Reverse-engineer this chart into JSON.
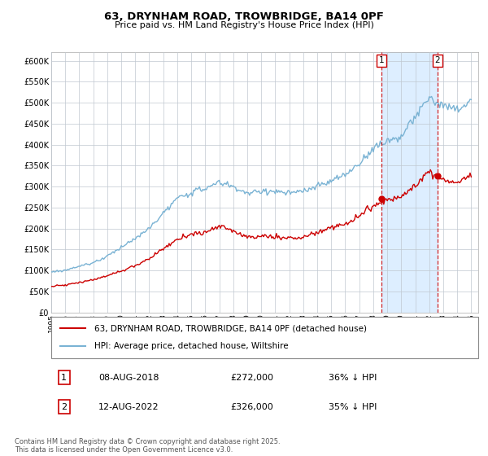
{
  "title": "63, DRYNHAM ROAD, TROWBRIDGE, BA14 0PF",
  "subtitle": "Price paid vs. HM Land Registry's House Price Index (HPI)",
  "ylabel_ticks": [
    "£0",
    "£50K",
    "£100K",
    "£150K",
    "£200K",
    "£250K",
    "£300K",
    "£350K",
    "£400K",
    "£450K",
    "£500K",
    "£550K",
    "£600K"
  ],
  "ytick_values": [
    0,
    50000,
    100000,
    150000,
    200000,
    250000,
    300000,
    350000,
    400000,
    450000,
    500000,
    550000,
    600000
  ],
  "xlim_left": 1995.0,
  "xlim_right": 2025.5,
  "ylim_bottom": 0,
  "ylim_top": 620000,
  "hpi_color": "#7ab3d4",
  "price_color": "#cc0000",
  "shade_color": "#ddeeff",
  "ann1_x": 2018.58,
  "ann2_x": 2022.58,
  "ann1_price": 272000,
  "ann2_price": 326000,
  "legend_label_price": "63, DRYNHAM ROAD, TROWBRIDGE, BA14 0PF (detached house)",
  "legend_label_hpi": "HPI: Average price, detached house, Wiltshire",
  "footer": "Contains HM Land Registry data © Crown copyright and database right 2025.\nThis data is licensed under the Open Government Licence v3.0.",
  "table_rows": [
    {
      "num": "1",
      "date": "08-AUG-2018",
      "price": "£272,000",
      "hpi": "36% ↓ HPI"
    },
    {
      "num": "2",
      "date": "12-AUG-2022",
      "price": "£326,000",
      "hpi": "35% ↓ HPI"
    }
  ]
}
